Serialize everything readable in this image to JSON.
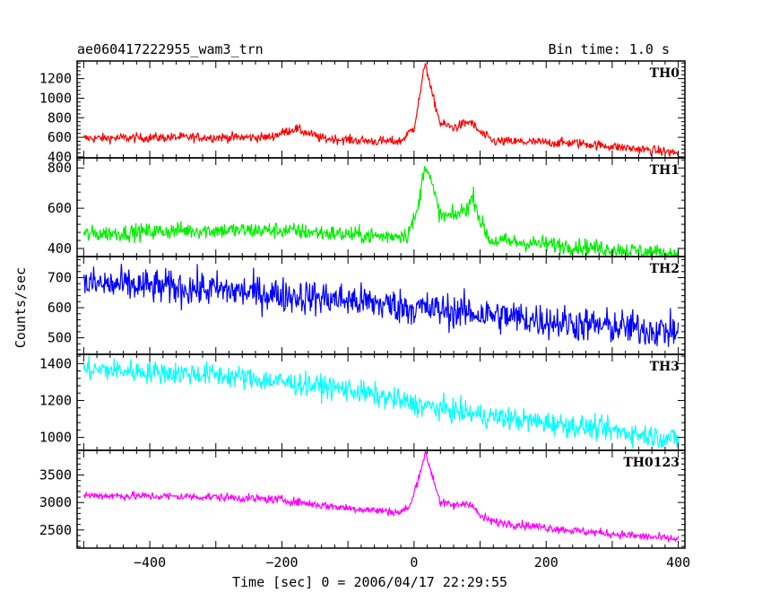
{
  "header": {
    "title": "ae060417222955_wam3_trn",
    "bin_time": "Bin time: 1.0 s"
  },
  "chart_data": {
    "type": "line",
    "xlabel": "Time [sec] 0 = 2006/04/17 22:29:55",
    "ylabel": "Counts/sec",
    "xlim": [
      -510,
      410
    ],
    "x_ticks": [
      -400,
      -200,
      0,
      200,
      400
    ],
    "x_range_data": [
      -500,
      400
    ],
    "panels": [
      {
        "name": "TH0",
        "color": "#ff0000",
        "ylim": [
          390,
          1380
        ],
        "yticks": [
          400,
          600,
          800,
          1000,
          1200
        ],
        "noise": 35,
        "shape": [
          [
            -500,
            590
          ],
          [
            -350,
            600
          ],
          [
            -220,
            600
          ],
          [
            -180,
            690
          ],
          [
            -140,
            590
          ],
          [
            -60,
            560
          ],
          [
            -20,
            560
          ],
          [
            0,
            700
          ],
          [
            12,
            1150
          ],
          [
            17,
            1380
          ],
          [
            25,
            1100
          ],
          [
            40,
            740
          ],
          [
            60,
            700
          ],
          [
            85,
            760
          ],
          [
            100,
            650
          ],
          [
            120,
            560
          ],
          [
            250,
            540
          ],
          [
            400,
            440
          ]
        ]
      },
      {
        "name": "TH1",
        "color": "#00ee00",
        "ylim": [
          360,
          850
        ],
        "yticks": [
          400,
          600,
          800
        ],
        "noise": 30,
        "shape": [
          [
            -500,
            470
          ],
          [
            -350,
            490
          ],
          [
            -200,
            490
          ],
          [
            -50,
            460
          ],
          [
            -10,
            470
          ],
          [
            5,
            580
          ],
          [
            17,
            830
          ],
          [
            25,
            740
          ],
          [
            40,
            560
          ],
          [
            60,
            560
          ],
          [
            80,
            600
          ],
          [
            90,
            660
          ],
          [
            100,
            540
          ],
          [
            115,
            440
          ],
          [
            250,
            410
          ],
          [
            400,
            370
          ]
        ]
      },
      {
        "name": "TH2",
        "color": "#0000ff",
        "ylim": [
          445,
          770
        ],
        "yticks": [
          500,
          600,
          700
        ],
        "noise": 42,
        "shape": [
          [
            -500,
            680
          ],
          [
            -300,
            660
          ],
          [
            -100,
            625
          ],
          [
            0,
            600
          ],
          [
            100,
            580
          ],
          [
            250,
            545
          ],
          [
            400,
            520
          ]
        ]
      },
      {
        "name": "TH3",
        "color": "#00ffff",
        "ylim": [
          930,
          1450
        ],
        "yticks": [
          1000,
          1200,
          1400
        ],
        "noise": 45,
        "shape": [
          [
            -500,
            1370
          ],
          [
            -300,
            1340
          ],
          [
            -100,
            1260
          ],
          [
            0,
            1180
          ],
          [
            100,
            1120
          ],
          [
            250,
            1060
          ],
          [
            400,
            990
          ]
        ]
      },
      {
        "name": "TH0123",
        "color": "#ff00ff",
        "ylim": [
          2170,
          3950
        ],
        "yticks": [
          2500,
          3000,
          3500
        ],
        "noise": 55,
        "shape": [
          [
            -500,
            3130
          ],
          [
            -300,
            3100
          ],
          [
            -200,
            3050
          ],
          [
            -140,
            2950
          ],
          [
            -100,
            2900
          ],
          [
            -20,
            2820
          ],
          [
            -5,
            2950
          ],
          [
            10,
            3600
          ],
          [
            17,
            3900
          ],
          [
            25,
            3600
          ],
          [
            40,
            3000
          ],
          [
            60,
            2940
          ],
          [
            85,
            3000
          ],
          [
            100,
            2750
          ],
          [
            120,
            2650
          ],
          [
            250,
            2480
          ],
          [
            400,
            2330
          ]
        ]
      }
    ]
  }
}
